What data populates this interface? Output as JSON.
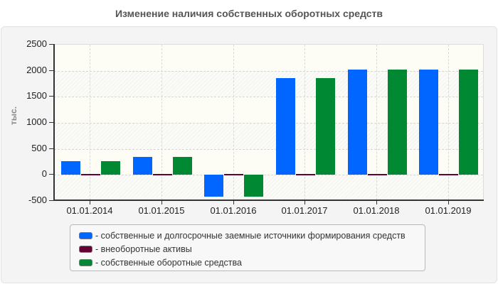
{
  "title": "Изменение наличия собственных оборотных средств",
  "colors": {
    "series_1": "#0066ff",
    "series_2": "#660033",
    "series_3": "#008833"
  },
  "chart_data": {
    "type": "bar",
    "title": "Изменение наличия собственных оборотных средств",
    "xlabel": "",
    "ylabel": "тыс.",
    "ylim": [
      -500,
      2500
    ],
    "yticks": [
      2500,
      2000,
      1500,
      1000,
      500,
      0,
      -500
    ],
    "grid": true,
    "legend_position": "bottom",
    "categories": [
      "01.01.2014",
      "01.01.2015",
      "01.01.2016",
      "01.01.2017",
      "01.01.2018",
      "01.01.2019"
    ],
    "series": [
      {
        "name": "собственные и долгосрочные заемные источники формирования средств",
        "color": "#0066ff",
        "values": [
          260,
          350,
          -420,
          1860,
          2020,
          2020
        ]
      },
      {
        "name": "внеоборотные активы",
        "color": "#660033",
        "values": [
          25,
          25,
          25,
          25,
          25,
          25
        ]
      },
      {
        "name": "собственные оборотные средства",
        "color": "#008833",
        "values": [
          260,
          350,
          -420,
          1860,
          2020,
          2020
        ]
      }
    ]
  },
  "axis": {
    "y_title": "тыс.",
    "y_labels": [
      "2500",
      "2000",
      "1500",
      "1000",
      "500",
      "0",
      "-500"
    ],
    "x_labels": [
      "01.01.2014",
      "01.01.2015",
      "01.01.2016",
      "01.01.2017",
      "01.01.2018",
      "01.01.2019"
    ]
  },
  "legend": {
    "items": [
      {
        "label": "- собственные и долгосрочные заемные источники формирования средств",
        "color": "#0066ff"
      },
      {
        "label": "- внеоборотные активы",
        "color": "#660033"
      },
      {
        "label": "- собственные оборотные средства",
        "color": "#008833"
      }
    ]
  }
}
